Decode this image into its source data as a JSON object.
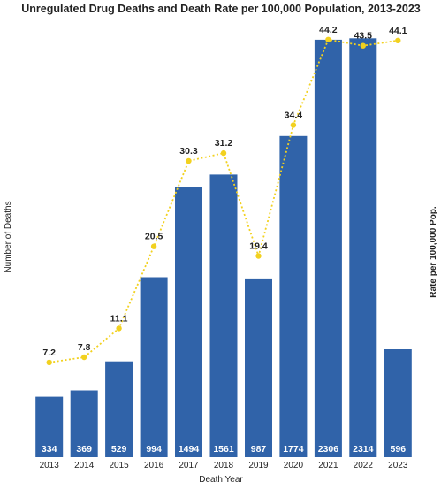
{
  "chart_data": {
    "type": "bar+line",
    "title": "Unregulated Drug Deaths and Death Rate per 100,000 Population, 2013-2023",
    "xlabel": "Death Year",
    "ylabel_left": "Number of Deaths",
    "ylabel_right": "Rate per 100,000 Pop.",
    "categories": [
      "2013",
      "2014",
      "2015",
      "2016",
      "2017",
      "2018",
      "2019",
      "2020",
      "2021",
      "2022",
      "2023"
    ],
    "series": [
      {
        "kind": "bar",
        "values": [
          334,
          369,
          529,
          994,
          1494,
          1561,
          987,
          1774,
          2306,
          2314,
          596
        ],
        "color": "#3063a9"
      },
      {
        "kind": "line",
        "values": [
          7.2,
          7.8,
          11.1,
          20.5,
          30.3,
          31.2,
          19.4,
          34.4,
          44.2,
          43.5,
          44.1
        ],
        "color": "#f2d11f",
        "style": "dotted"
      }
    ],
    "left_axis_range": [
      0,
      2330
    ],
    "right_axis_range": [
      0,
      46
    ],
    "grid": false,
    "legend": "none"
  }
}
